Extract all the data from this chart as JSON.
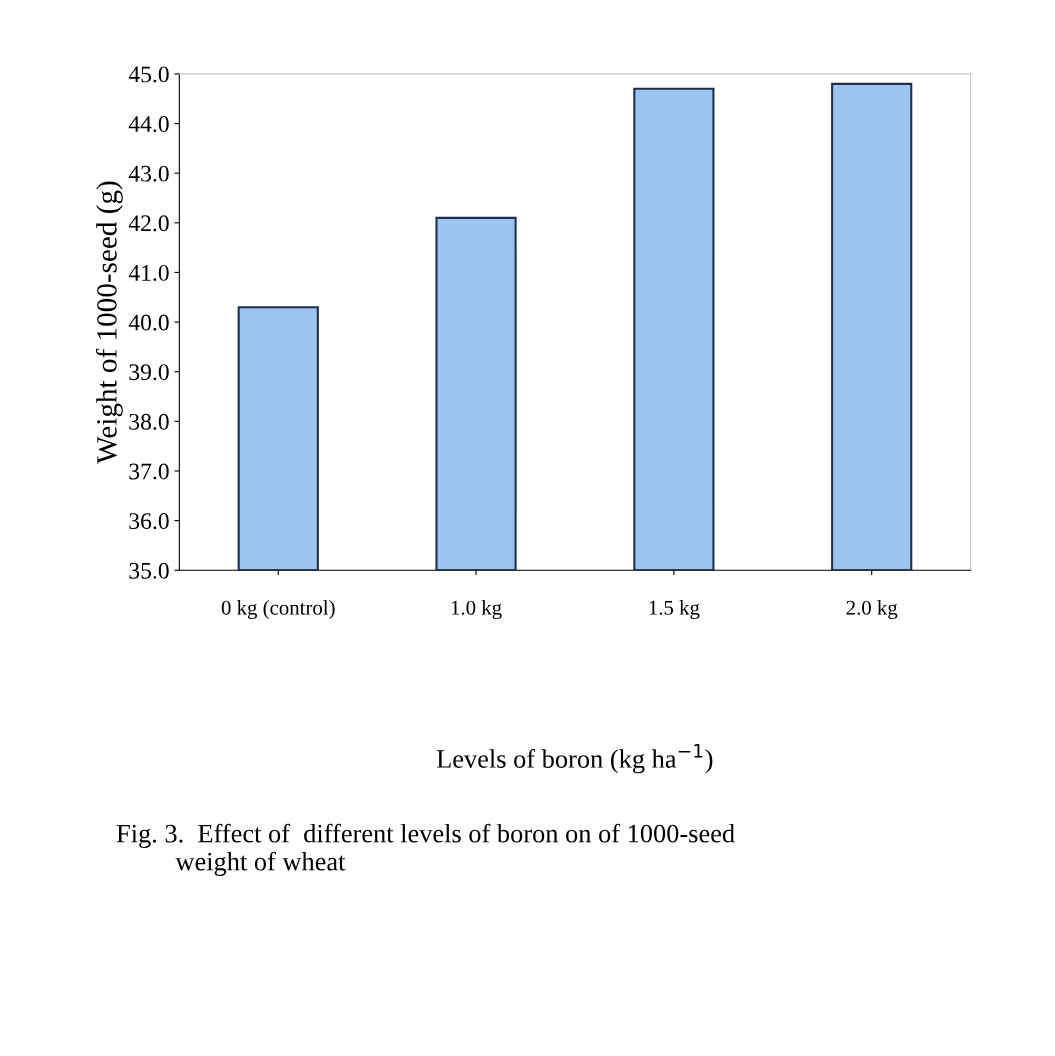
{
  "chart_data": {
    "type": "bar",
    "categories": [
      "0 kg (control)",
      "1.0 kg",
      "1.5 kg",
      "2.0 kg"
    ],
    "values": [
      40.3,
      42.1,
      44.7,
      44.8
    ],
    "color": "#9dc3f0",
    "ylim": [
      35,
      45
    ],
    "yticks": [
      {
        "value": 35,
        "label": "35.0"
      },
      {
        "value": 36,
        "label": "36.0"
      },
      {
        "value": 37,
        "label": "37.0"
      },
      {
        "value": 38,
        "label": "38.0"
      },
      {
        "value": 39,
        "label": "39.0"
      },
      {
        "value": 40,
        "label": "40.0"
      },
      {
        "value": 41,
        "label": "41.0"
      },
      {
        "value": 42,
        "label": "42.0"
      },
      {
        "value": 43,
        "label": "43.0"
      },
      {
        "value": 44,
        "label": "44.0"
      },
      {
        "value": 45,
        "label": "45.0"
      }
    ],
    "ylabel": "Weight of 1000-seed (g)",
    "xlabel": "Levels of boron (kg ha$^{−1}$)",
    "annotations": [
      "Fig. 3.  Effect of  different levels of boron on of 1000-seed\n         weight of wheat"
    ],
    "grid": false,
    "legend": false
  }
}
